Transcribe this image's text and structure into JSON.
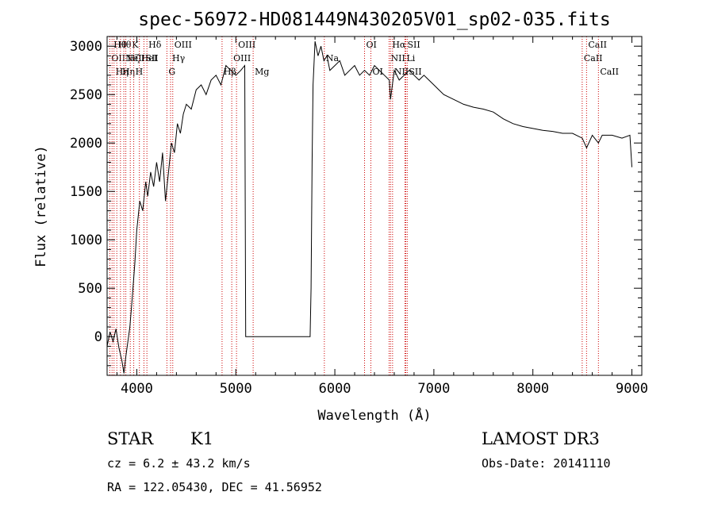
{
  "chart_data": {
    "type": "line",
    "title": "spec-56972-HD081449N430205V01_sp02-035.fits",
    "xlabel": "Wavelength (Å)",
    "ylabel": "Flux (relative)",
    "xlim": [
      3700,
      9100
    ],
    "ylim": [
      -400,
      3100
    ],
    "xticks": [
      4000,
      5000,
      6000,
      7000,
      8000,
      9000
    ],
    "yticks": [
      0,
      500,
      1000,
      1500,
      2000,
      2500,
      3000
    ],
    "grid": false,
    "line_color": "#000000",
    "marker_color": "#cc0000",
    "series": [
      {
        "x": [
          3700,
          3730,
          3760,
          3790,
          3820,
          3850,
          3870,
          3890,
          3910,
          3930,
          3950,
          3980,
          4000,
          4030,
          4060,
          4090,
          4110,
          4140,
          4170,
          4200,
          4230,
          4260,
          4290,
          4320,
          4350,
          4380,
          4410,
          4440,
          4470,
          4500,
          4550,
          4600,
          4650,
          4700,
          4750,
          4800,
          4850,
          4900,
          4950,
          5000,
          5050,
          5090,
          5100,
          5200,
          5400,
          5600,
          5750,
          5760,
          5770,
          5780,
          5800,
          5830,
          5860,
          5890,
          5920,
          5950,
          6000,
          6050,
          6100,
          6150,
          6200,
          6250,
          6300,
          6350,
          6400,
          6450,
          6500,
          6550,
          6562,
          6600,
          6650,
          6700,
          6750,
          6800,
          6850,
          6900,
          6950,
          7000,
          7050,
          7100,
          7200,
          7300,
          7400,
          7500,
          7600,
          7700,
          7800,
          7900,
          8000,
          8100,
          8200,
          8300,
          8400,
          8498,
          8542,
          8600,
          8662,
          8700,
          8800,
          8900,
          8980,
          9000
        ],
        "y": [
          -100,
          50,
          -50,
          80,
          -120,
          -250,
          -380,
          -200,
          -50,
          100,
          350,
          750,
          1100,
          1400,
          1300,
          1600,
          1450,
          1700,
          1550,
          1800,
          1600,
          1900,
          1400,
          1700,
          2000,
          1900,
          2200,
          2100,
          2300,
          2400,
          2350,
          2550,
          2600,
          2500,
          2650,
          2700,
          2600,
          2800,
          2750,
          2700,
          2750,
          2800,
          0,
          0,
          0,
          0,
          0,
          500,
          1800,
          2600,
          3050,
          2900,
          3000,
          2850,
          2900,
          2750,
          2800,
          2850,
          2700,
          2750,
          2800,
          2700,
          2750,
          2700,
          2800,
          2750,
          2700,
          2650,
          2450,
          2750,
          2650,
          2700,
          2750,
          2700,
          2650,
          2700,
          2650,
          2600,
          2550,
          2500,
          2450,
          2400,
          2370,
          2350,
          2320,
          2250,
          2200,
          2170,
          2150,
          2130,
          2120,
          2100,
          2100,
          2050,
          1950,
          2080,
          2000,
          2080,
          2080,
          2050,
          2080,
          1750
        ]
      }
    ],
    "lines": [
      {
        "x": 3727,
        "label": "OII",
        "row": 2
      },
      {
        "x": 3750,
        "label": "Hθ",
        "row": 1
      },
      {
        "x": 3770,
        "label": "Hη",
        "row": 3
      },
      {
        "x": 3798,
        "label": "Hθ",
        "row": 1
      },
      {
        "x": 3835,
        "label": "Hη",
        "row": 3
      },
      {
        "x": 3869,
        "label": "NeIII",
        "row": 2
      },
      {
        "x": 3889,
        "label": "Hζ",
        "row": 2
      },
      {
        "x": 3934,
        "label": "K",
        "row": 1
      },
      {
        "x": 3969,
        "label": "H",
        "row": 3
      },
      {
        "x": 4026,
        "label": "HeI",
        "row": 2
      },
      {
        "x": 4072,
        "label": "SII",
        "row": 2
      },
      {
        "x": 4102,
        "label": "Hδ",
        "row": 1
      },
      {
        "x": 4304,
        "label": "G",
        "row": 3
      },
      {
        "x": 4341,
        "label": "Hγ",
        "row": 2
      },
      {
        "x": 4363,
        "label": "OIII",
        "row": 1
      },
      {
        "x": 4861,
        "label": "Hβ",
        "row": 3
      },
      {
        "x": 4959,
        "label": "OIII",
        "row": 2
      },
      {
        "x": 5007,
        "label": "OIII",
        "row": 1
      },
      {
        "x": 5175,
        "label": "Mg",
        "row": 3
      },
      {
        "x": 5894,
        "label": "Na",
        "row": 2
      },
      {
        "x": 6300,
        "label": "OI",
        "row": 1
      },
      {
        "x": 6364,
        "label": "OI",
        "row": 3
      },
      {
        "x": 6548,
        "label": "NII",
        "row": 2
      },
      {
        "x": 6563,
        "label": "Hα",
        "row": 1
      },
      {
        "x": 6583,
        "label": "NII",
        "row": 3
      },
      {
        "x": 6708,
        "label": "Li",
        "row": 2
      },
      {
        "x": 6716,
        "label": "SII",
        "row": 1
      },
      {
        "x": 6731,
        "label": "SII",
        "row": 3
      },
      {
        "x": 8498,
        "label": "CaII",
        "row": 2
      },
      {
        "x": 8542,
        "label": "CaII",
        "row": 1
      },
      {
        "x": 8662,
        "label": "CaII",
        "row": 3
      }
    ]
  },
  "info": {
    "object_type": "STAR",
    "subclass": "K1",
    "survey": "LAMOST DR3",
    "cz": "cz = 6.2 ± 43.2 km/s",
    "obs_date": "Obs-Date: 20141110",
    "coords": "RA = 122.05430, DEC =  41.56952"
  }
}
